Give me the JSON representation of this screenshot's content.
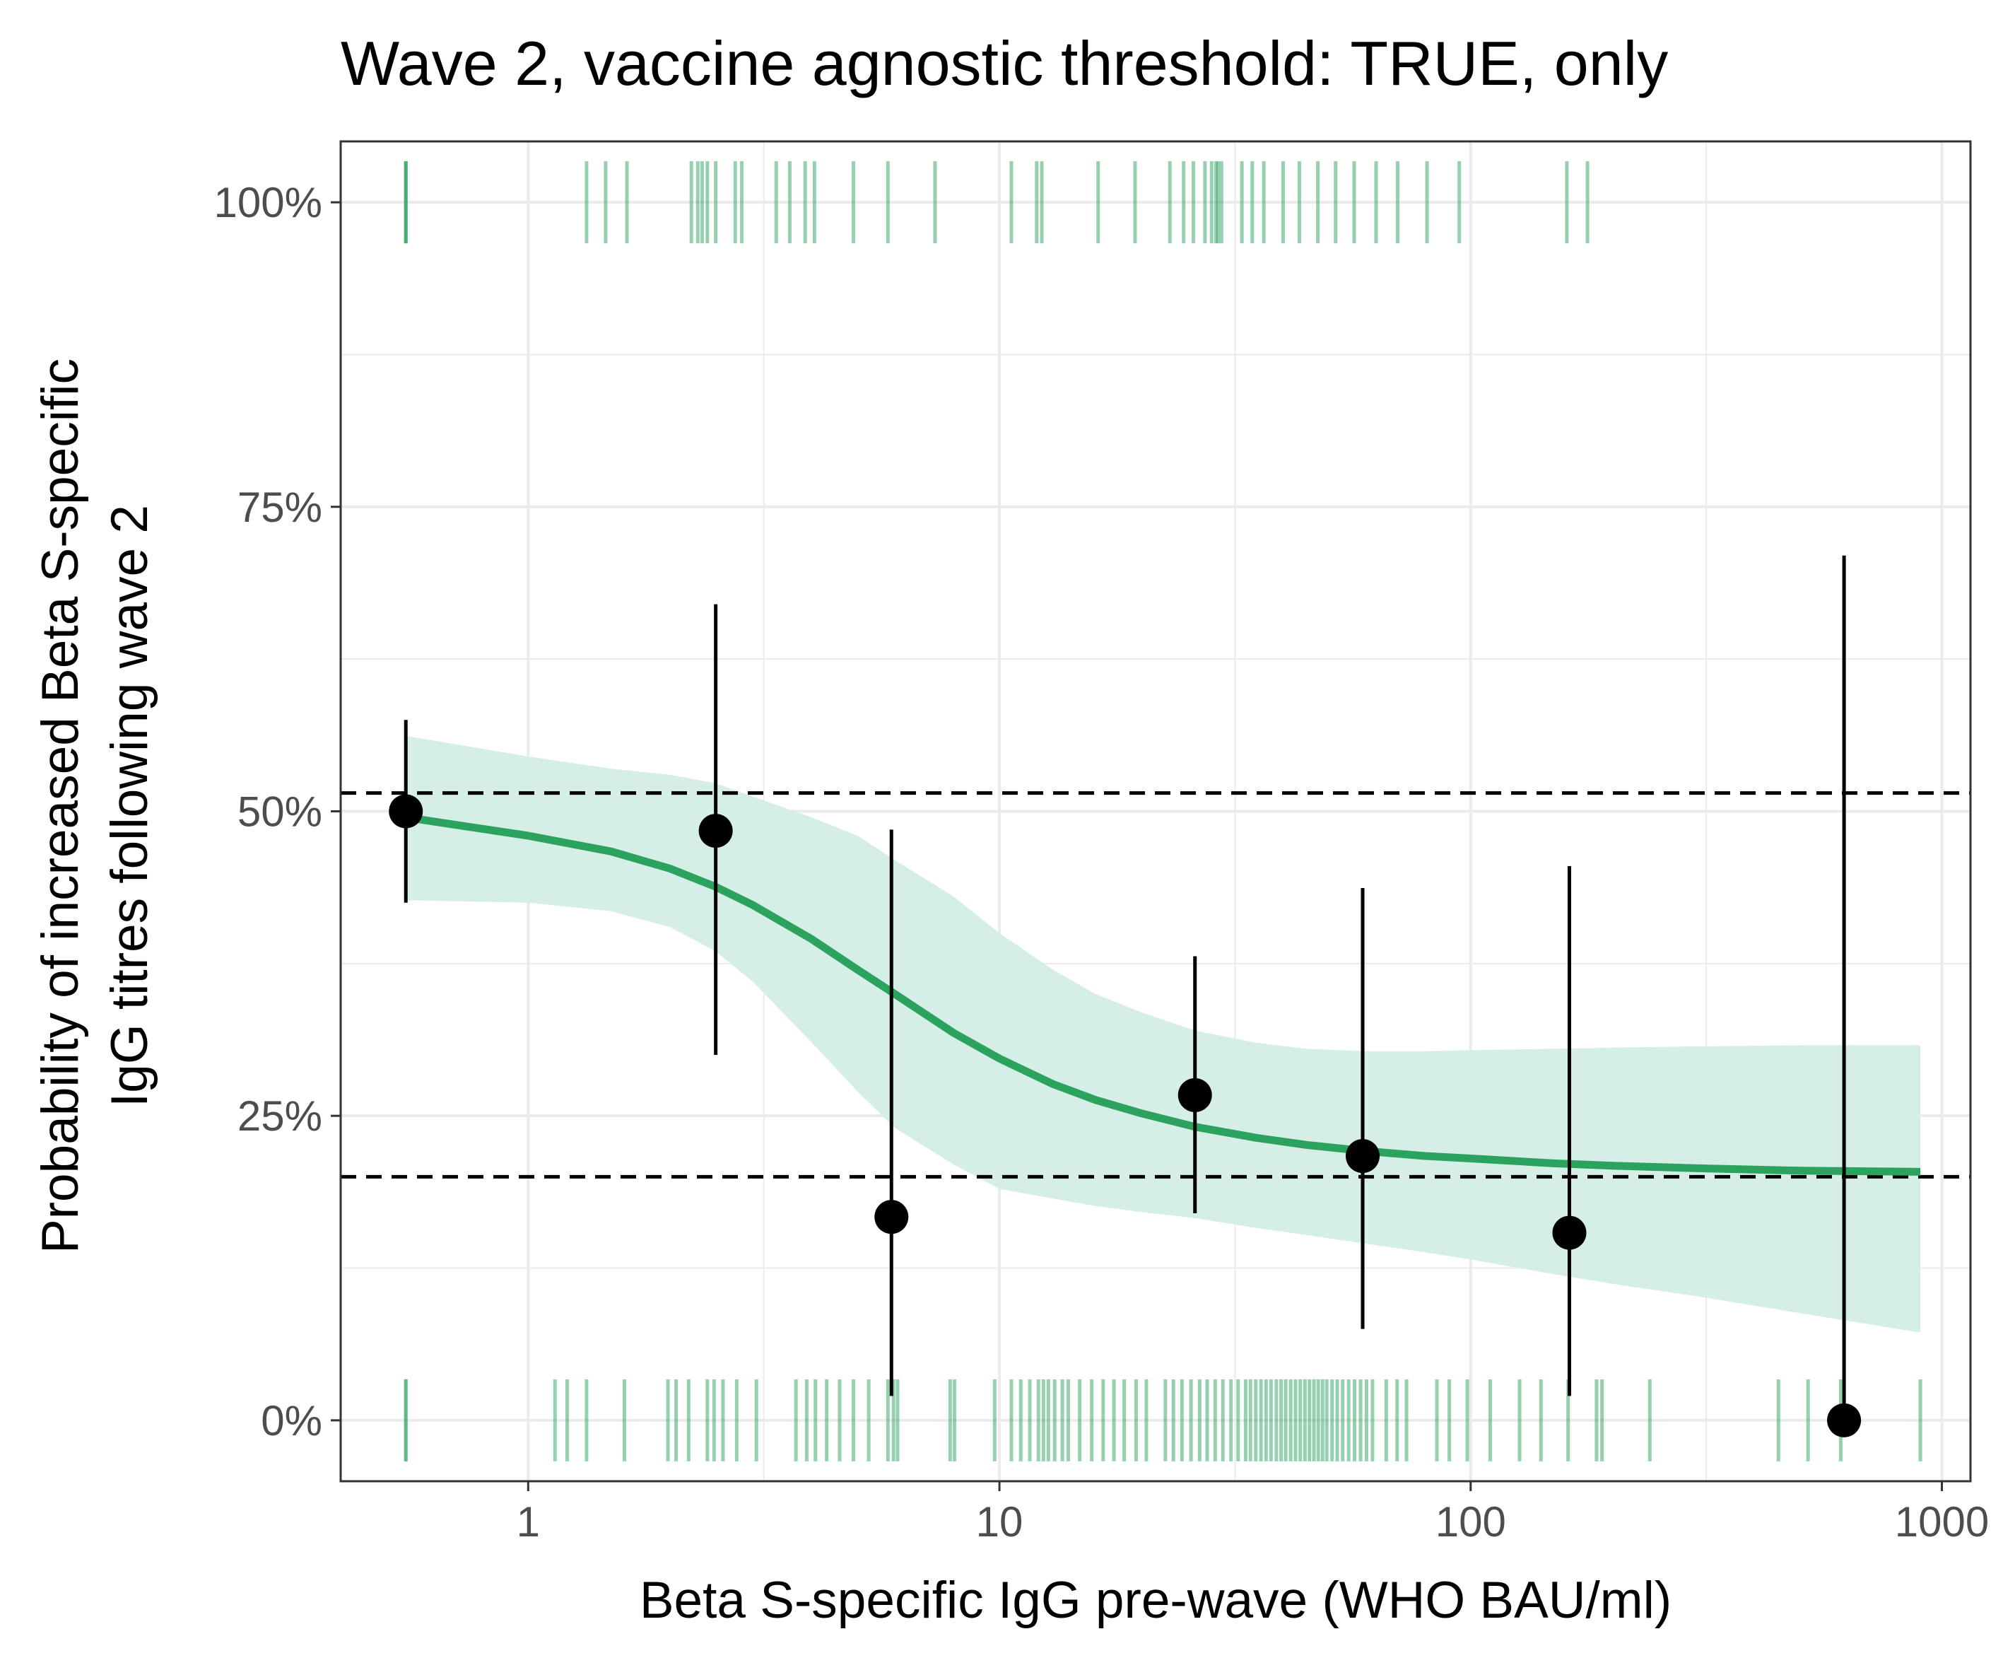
{
  "chart_data": {
    "type": "scatter",
    "title": "Wave 2, vaccine agnostic threshold: TRUE, only",
    "xlabel": "Beta S-specific IgG pre-wave (WHO BAU/ml)",
    "ylabel_lines": [
      "Probability of increased Beta S-specific",
      "IgG titres following wave 2"
    ],
    "x_scale": "log10",
    "xlim": [
      0.4,
      1150
    ],
    "ylim": [
      -0.05,
      1.05
    ],
    "x_ticks": [
      1,
      10,
      100,
      1000
    ],
    "x_tick_labels": [
      "1",
      "10",
      "100",
      "1000"
    ],
    "y_ticks": [
      0,
      0.25,
      0.5,
      0.75,
      1.0
    ],
    "y_tick_labels": [
      "0%",
      "25%",
      "50%",
      "75%",
      "100%"
    ],
    "grid": true,
    "colors": {
      "fit_line": "#2ca25f",
      "ribbon": "#d6efe6",
      "rug": "#2ca25f",
      "points": "#000000",
      "grid": "#ebebeb"
    },
    "binned_points": [
      {
        "x": 0.55,
        "y": 0.5,
        "lower": 0.425,
        "upper": 0.575
      },
      {
        "x": 2.5,
        "y": 0.484,
        "lower": 0.3,
        "upper": 0.67
      },
      {
        "x": 5.9,
        "y": 0.167,
        "lower": 0.02,
        "upper": 0.485
      },
      {
        "x": 26,
        "y": 0.267,
        "lower": 0.17,
        "upper": 0.381
      },
      {
        "x": 59,
        "y": 0.217,
        "lower": 0.075,
        "upper": 0.437
      },
      {
        "x": 162,
        "y": 0.154,
        "lower": 0.02,
        "upper": 0.455
      },
      {
        "x": 620,
        "y": 0.0,
        "lower": 0.0,
        "upper": 0.71
      }
    ],
    "fit_curve": {
      "x": [
        0.55,
        1.0,
        1.5,
        2.0,
        2.5,
        3.0,
        4.0,
        5.0,
        6.0,
        8.0,
        10,
        13,
        16,
        20,
        26,
        35,
        45,
        60,
        80,
        100,
        150,
        200,
        300,
        500,
        900
      ],
      "y": [
        0.495,
        0.48,
        0.467,
        0.453,
        0.438,
        0.423,
        0.395,
        0.37,
        0.35,
        0.318,
        0.297,
        0.276,
        0.263,
        0.252,
        0.241,
        0.232,
        0.226,
        0.221,
        0.217,
        0.215,
        0.211,
        0.209,
        0.207,
        0.205,
        0.204
      ],
      "lower": [
        0.427,
        0.425,
        0.418,
        0.405,
        0.385,
        0.36,
        0.31,
        0.27,
        0.24,
        0.21,
        0.19,
        0.182,
        0.176,
        0.171,
        0.166,
        0.158,
        0.152,
        0.145,
        0.138,
        0.132,
        0.12,
        0.112,
        0.102,
        0.088,
        0.072
      ],
      "upper": [
        0.562,
        0.545,
        0.535,
        0.53,
        0.523,
        0.512,
        0.495,
        0.48,
        0.46,
        0.43,
        0.4,
        0.37,
        0.35,
        0.335,
        0.32,
        0.31,
        0.305,
        0.303,
        0.303,
        0.304,
        0.305,
        0.306,
        0.307,
        0.308,
        0.308
      ]
    },
    "reference_lines_y": [
      0.515,
      0.2
    ],
    "rug_top_x": [
      0.55,
      0.55,
      0.55,
      1.33,
      1.46,
      1.62,
      2.22,
      2.29,
      2.34,
      2.4,
      2.5,
      2.75,
      2.84,
      3.36,
      3.59,
      3.87,
      4.05,
      4.9,
      5.8,
      7.3,
      10.6,
      12.0,
      12.3,
      16.2,
      19.4,
      23.0,
      24.6,
      25.8,
      27.3,
      28.2,
      28.8,
      29.1,
      29.6,
      32.7,
      34.4,
      36.4,
      40.0,
      43.3,
      47.4,
      51.7,
      56.6,
      63.0,
      70.0,
      80.8,
      94.6,
      160,
      177
    ],
    "rug_bottom_x": [
      0.55,
      0.55,
      1.14,
      1.21,
      1.33,
      1.6,
      1.98,
      2.06,
      2.19,
      2.4,
      2.48,
      2.59,
      2.77,
      3.05,
      3.7,
      3.9,
      4.07,
      4.3,
      4.58,
      4.9,
      5.28,
      5.8,
      5.96,
      6.08,
      7.86,
      8.03,
      9.77,
      10.6,
      11.1,
      11.6,
      12.1,
      12.4,
      12.7,
      13.1,
      13.6,
      14.0,
      14.8,
      15.7,
      16.6,
      17.5,
      18.4,
      19.5,
      20.5,
      22.5,
      23.4,
      24.4,
      25.5,
      26.6,
      27.6,
      28.7,
      29.8,
      31.0,
      32.1,
      33.3,
      34.1,
      35.0,
      35.9,
      36.8,
      37.7,
      38.7,
      39.6,
      40.5,
      41.5,
      42.5,
      43.5,
      44.5,
      45.5,
      46.5,
      47.5,
      48.5,
      49.5,
      50.8,
      52.1,
      53.5,
      55.1,
      56.7,
      58.4,
      60.1,
      61.9,
      66.2,
      69.8,
      73.1,
      84.8,
      90.1,
      98.4,
      110,
      127,
      141,
      161,
      185,
      190,
      240,
      450,
      520,
      610,
      900
    ]
  }
}
